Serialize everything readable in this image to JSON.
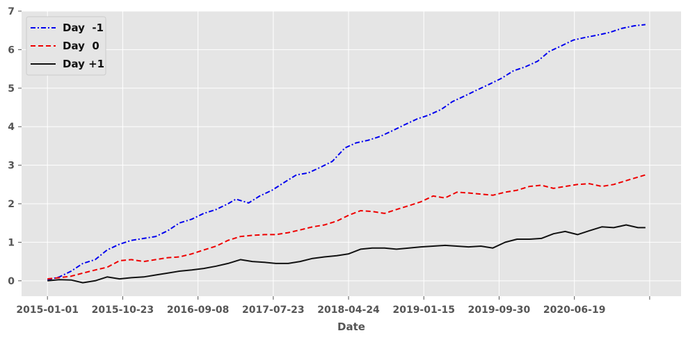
{
  "chart_data": {
    "type": "line",
    "title": "",
    "xlabel": "Date",
    "ylabel": "",
    "x_range": [
      "2014-09-25",
      "2021-07-28"
    ],
    "ylim": [
      -0.4,
      7
    ],
    "grid": true,
    "legend_position": "top-left",
    "x_ticks": [
      "2015-01-01",
      "2015-10-23",
      "2016-09-08",
      "2017-07-23",
      "2018-04-24",
      "2019-01-15",
      "2019-09-30",
      "2020-06-19",
      ""
    ],
    "y_ticks": [
      "0",
      "1",
      "2",
      "3",
      "4",
      "5",
      "6",
      "7"
    ],
    "series": [
      {
        "name": "Day  -1",
        "color": "#0000ee",
        "style": "dashdot",
        "points": [
          [
            "2015-01-01",
            0.02
          ],
          [
            "2015-02-15",
            0.1
          ],
          [
            "2015-04-01",
            0.25
          ],
          [
            "2015-05-15",
            0.45
          ],
          [
            "2015-07-01",
            0.55
          ],
          [
            "2015-08-15",
            0.8
          ],
          [
            "2015-10-01",
            0.95
          ],
          [
            "2015-11-15",
            1.05
          ],
          [
            "2016-01-01",
            1.1
          ],
          [
            "2016-02-15",
            1.15
          ],
          [
            "2016-04-01",
            1.3
          ],
          [
            "2016-05-15",
            1.5
          ],
          [
            "2016-07-01",
            1.6
          ],
          [
            "2016-08-15",
            1.75
          ],
          [
            "2016-10-01",
            1.85
          ],
          [
            "2016-11-15",
            2.0
          ],
          [
            "2016-12-15",
            2.12
          ],
          [
            "2017-02-01",
            2.02
          ],
          [
            "2017-03-15",
            2.2
          ],
          [
            "2017-05-01",
            2.35
          ],
          [
            "2017-06-15",
            2.55
          ],
          [
            "2017-08-01",
            2.75
          ],
          [
            "2017-09-15",
            2.8
          ],
          [
            "2017-11-01",
            2.95
          ],
          [
            "2017-12-15",
            3.1
          ],
          [
            "2018-02-01",
            3.45
          ],
          [
            "2018-03-15",
            3.58
          ],
          [
            "2018-05-01",
            3.65
          ],
          [
            "2018-06-15",
            3.75
          ],
          [
            "2018-08-01",
            3.9
          ],
          [
            "2018-09-15",
            4.05
          ],
          [
            "2018-11-01",
            4.2
          ],
          [
            "2018-12-15",
            4.3
          ],
          [
            "2019-02-01",
            4.45
          ],
          [
            "2019-03-15",
            4.65
          ],
          [
            "2019-05-01",
            4.8
          ],
          [
            "2019-06-15",
            4.95
          ],
          [
            "2019-08-01",
            5.1
          ],
          [
            "2019-09-15",
            5.25
          ],
          [
            "2019-11-01",
            5.45
          ],
          [
            "2019-12-15",
            5.55
          ],
          [
            "2020-02-01",
            5.7
          ],
          [
            "2020-03-15",
            5.95
          ],
          [
            "2020-05-01",
            6.1
          ],
          [
            "2020-06-15",
            6.25
          ],
          [
            "2020-08-01",
            6.32
          ],
          [
            "2020-09-15",
            6.38
          ],
          [
            "2020-11-01",
            6.45
          ],
          [
            "2020-12-15",
            6.55
          ],
          [
            "2021-02-01",
            6.62
          ],
          [
            "2021-03-15",
            6.65
          ]
        ]
      },
      {
        "name": "Day  0",
        "color": "#ee0000",
        "style": "dashed",
        "points": [
          [
            "2015-01-01",
            0.05
          ],
          [
            "2015-02-15",
            0.08
          ],
          [
            "2015-04-01",
            0.12
          ],
          [
            "2015-05-15",
            0.2
          ],
          [
            "2015-07-01",
            0.28
          ],
          [
            "2015-08-15",
            0.35
          ],
          [
            "2015-10-01",
            0.52
          ],
          [
            "2015-11-15",
            0.55
          ],
          [
            "2016-01-01",
            0.5
          ],
          [
            "2016-02-15",
            0.55
          ],
          [
            "2016-04-01",
            0.6
          ],
          [
            "2016-05-15",
            0.62
          ],
          [
            "2016-07-01",
            0.7
          ],
          [
            "2016-08-15",
            0.8
          ],
          [
            "2016-10-01",
            0.9
          ],
          [
            "2016-11-15",
            1.05
          ],
          [
            "2017-01-01",
            1.15
          ],
          [
            "2017-02-15",
            1.18
          ],
          [
            "2017-04-01",
            1.2
          ],
          [
            "2017-05-15",
            1.2
          ],
          [
            "2017-07-01",
            1.25
          ],
          [
            "2017-08-15",
            1.32
          ],
          [
            "2017-10-01",
            1.4
          ],
          [
            "2017-11-15",
            1.45
          ],
          [
            "2018-01-01",
            1.55
          ],
          [
            "2018-02-15",
            1.7
          ],
          [
            "2018-04-01",
            1.82
          ],
          [
            "2018-05-15",
            1.8
          ],
          [
            "2018-07-01",
            1.75
          ],
          [
            "2018-08-15",
            1.85
          ],
          [
            "2018-10-01",
            1.95
          ],
          [
            "2018-11-15",
            2.05
          ],
          [
            "2019-01-01",
            2.2
          ],
          [
            "2019-02-15",
            2.15
          ],
          [
            "2019-04-01",
            2.3
          ],
          [
            "2019-05-15",
            2.28
          ],
          [
            "2019-07-01",
            2.25
          ],
          [
            "2019-08-15",
            2.22
          ],
          [
            "2019-10-01",
            2.3
          ],
          [
            "2019-11-15",
            2.35
          ],
          [
            "2020-01-01",
            2.45
          ],
          [
            "2020-02-15",
            2.48
          ],
          [
            "2020-04-01",
            2.4
          ],
          [
            "2020-05-15",
            2.45
          ],
          [
            "2020-07-01",
            2.5
          ],
          [
            "2020-08-15",
            2.52
          ],
          [
            "2020-10-01",
            2.45
          ],
          [
            "2020-11-15",
            2.5
          ],
          [
            "2021-01-01",
            2.6
          ],
          [
            "2021-03-15",
            2.75
          ]
        ]
      },
      {
        "name": "Day +1",
        "color": "#111111",
        "style": "solid",
        "points": [
          [
            "2015-01-01",
            0.0
          ],
          [
            "2015-02-15",
            0.03
          ],
          [
            "2015-04-01",
            0.02
          ],
          [
            "2015-05-15",
            -0.05
          ],
          [
            "2015-07-01",
            0.0
          ],
          [
            "2015-08-15",
            0.1
          ],
          [
            "2015-10-01",
            0.05
          ],
          [
            "2015-11-15",
            0.08
          ],
          [
            "2016-01-01",
            0.1
          ],
          [
            "2016-02-15",
            0.15
          ],
          [
            "2016-04-01",
            0.2
          ],
          [
            "2016-05-15",
            0.25
          ],
          [
            "2016-07-01",
            0.28
          ],
          [
            "2016-08-15",
            0.32
          ],
          [
            "2016-10-01",
            0.38
          ],
          [
            "2016-11-15",
            0.45
          ],
          [
            "2017-01-01",
            0.55
          ],
          [
            "2017-02-15",
            0.5
          ],
          [
            "2017-04-01",
            0.48
          ],
          [
            "2017-05-15",
            0.45
          ],
          [
            "2017-07-01",
            0.45
          ],
          [
            "2017-08-15",
            0.5
          ],
          [
            "2017-10-01",
            0.58
          ],
          [
            "2017-11-15",
            0.62
          ],
          [
            "2018-01-01",
            0.65
          ],
          [
            "2018-02-15",
            0.7
          ],
          [
            "2018-04-01",
            0.82
          ],
          [
            "2018-05-15",
            0.85
          ],
          [
            "2018-07-01",
            0.85
          ],
          [
            "2018-08-15",
            0.82
          ],
          [
            "2018-10-01",
            0.85
          ],
          [
            "2018-11-15",
            0.88
          ],
          [
            "2019-01-01",
            0.9
          ],
          [
            "2019-02-15",
            0.92
          ],
          [
            "2019-04-01",
            0.9
          ],
          [
            "2019-05-15",
            0.88
          ],
          [
            "2019-07-01",
            0.9
          ],
          [
            "2019-08-15",
            0.85
          ],
          [
            "2019-10-01",
            1.0
          ],
          [
            "2019-11-15",
            1.08
          ],
          [
            "2020-01-01",
            1.08
          ],
          [
            "2020-02-15",
            1.1
          ],
          [
            "2020-04-01",
            1.22
          ],
          [
            "2020-05-15",
            1.28
          ],
          [
            "2020-07-01",
            1.2
          ],
          [
            "2020-08-15",
            1.3
          ],
          [
            "2020-10-01",
            1.4
          ],
          [
            "2020-11-15",
            1.38
          ],
          [
            "2021-01-01",
            1.45
          ],
          [
            "2021-02-15",
            1.38
          ],
          [
            "2021-03-15",
            1.38
          ]
        ]
      }
    ]
  }
}
